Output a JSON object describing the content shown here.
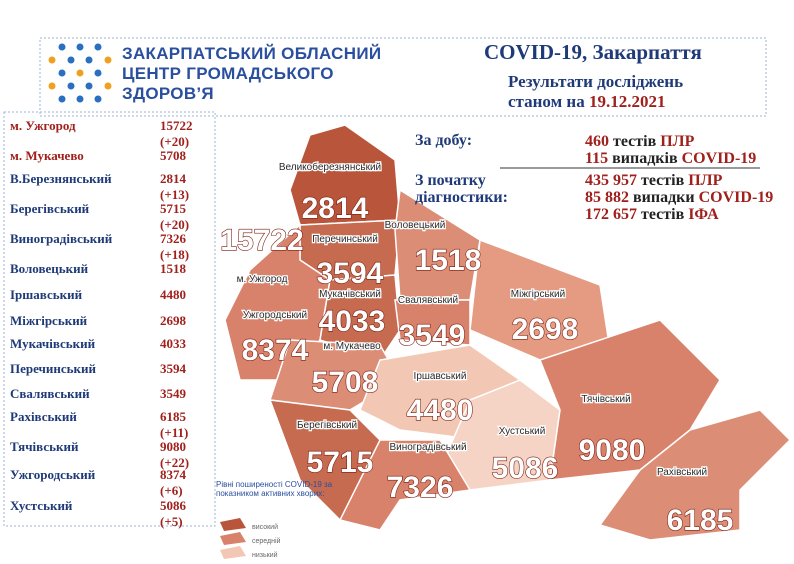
{
  "header": {
    "org": [
      "ЗАКАРПАТСЬКИЙ ОБЛАСНИЙ",
      "ЦЕНТР ГРОМАДСЬКОГО",
      "ЗДОРОВ’Я"
    ],
    "title": "COVID-19, Закарпаття",
    "subtitle": "Результати досліджень",
    "date_prefix": "станом на",
    "date": "19.12.2021"
  },
  "table": {
    "rows": [
      [
        "м. Ужгород",
        "15722",
        "(+20)"
      ],
      [
        "м. Мукачево",
        "5708",
        null
      ],
      [
        "В.Березнянський",
        "2814",
        "(+13)"
      ],
      [
        "Берегівський",
        "5715",
        "(+20)"
      ],
      [
        "Виноградівський",
        "7326",
        "(+18)"
      ],
      [
        "Воловецький",
        "1518",
        null
      ],
      [
        "Іршавський",
        "4480",
        null
      ],
      [
        "Міжгірський",
        "2698",
        null
      ],
      [
        "Мукачівський",
        "4033",
        null
      ],
      [
        "Перечинський",
        "3594",
        null
      ],
      [
        "Свалявський",
        "3549",
        null
      ],
      [
        "Рахівський",
        "6185",
        "(+11)"
      ],
      [
        "Тячівський",
        "9080",
        "(+22)"
      ],
      [
        "Ужгородський",
        "8374",
        "(+6)"
      ],
      [
        "Хустський",
        "5086",
        "(+5)"
      ]
    ]
  },
  "stats": {
    "daily": {
      "label": "За добу:",
      "items": [
        [
          "460",
          "тестів",
          "ПЛР"
        ],
        [
          "115",
          "випадків",
          "COVID-19"
        ]
      ]
    },
    "total": {
      "label": "З початку діагностики:",
      "items": [
        [
          "435 957",
          "тестів",
          "ПЛР"
        ],
        [
          "85 882",
          "випадки",
          "COVID-19"
        ],
        [
          "172 657",
          "тестів",
          "ІФА"
        ]
      ]
    }
  },
  "map": {
    "regions": [
      {
        "name": "Великоберезнянський",
        "value": "2814"
      },
      {
        "name": "Перечинський",
        "value": "3594"
      },
      {
        "name": "Воловецький",
        "value": "1518"
      },
      {
        "name": "м. Ужгород",
        "value": "15722"
      },
      {
        "name": "Ужгородський",
        "value": "8374"
      },
      {
        "name": "Мукачівський",
        "value": "4033"
      },
      {
        "name": "Свалявський",
        "value": "3549"
      },
      {
        "name": "Міжгірський",
        "value": "2698"
      },
      {
        "name": "м. Мукачево",
        "value": "5708"
      },
      {
        "name": "Іршавський",
        "value": "4480"
      },
      {
        "name": "Хустський",
        "value": "5086"
      },
      {
        "name": "Тячівський",
        "value": "9080"
      },
      {
        "name": "Берегівський",
        "value": "5715"
      },
      {
        "name": "Виноградівський",
        "value": "7326"
      },
      {
        "name": "Рахівський",
        "value": "6185"
      }
    ]
  },
  "legend": {
    "title": "Рівні поширеності COVID-19 за показником активних хворих:",
    "levels": [
      "високий",
      "середній",
      "низький"
    ]
  }
}
